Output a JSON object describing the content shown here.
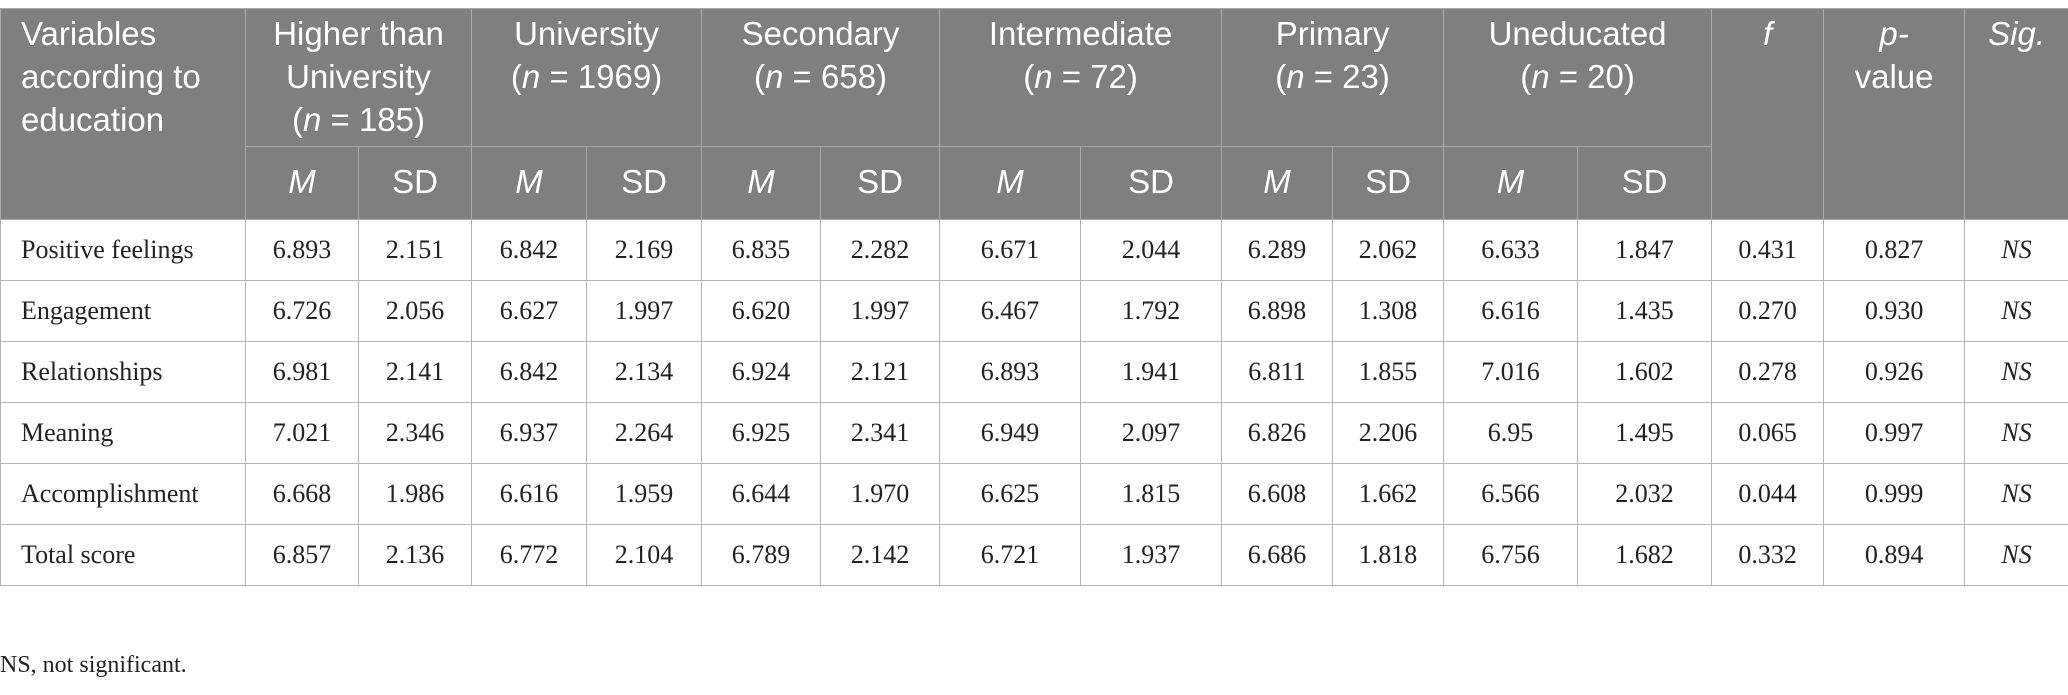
{
  "table": {
    "header": {
      "first_col": "Variables according to education",
      "groups": [
        {
          "name": "Higher than University",
          "n": "185"
        },
        {
          "name": "University",
          "n": "1969"
        },
        {
          "name": "Secondary",
          "n": "658"
        },
        {
          "name": "Intermediate",
          "n": "72"
        },
        {
          "name": "Primary",
          "n": "23"
        },
        {
          "name": "Uneducated",
          "n": "20"
        }
      ],
      "f": "f",
      "p_top": "p-",
      "p_bottom": "value",
      "sig": "Sig.",
      "n_label": "n",
      "eq": " = ",
      "m": "M",
      "sd": "SD"
    },
    "rows": [
      {
        "label": "Positive feelings",
        "cells": [
          "6.893",
          "2.151",
          "6.842",
          "2.169",
          "6.835",
          "2.282",
          "6.671",
          "2.044",
          "6.289",
          "2.062",
          "6.633",
          "1.847"
        ],
        "f": "0.431",
        "p": "0.827",
        "sig": "NS"
      },
      {
        "label": "Engagement",
        "cells": [
          "6.726",
          "2.056",
          "6.627",
          "1.997",
          "6.620",
          "1.997",
          "6.467",
          "1.792",
          "6.898",
          "1.308",
          "6.616",
          "1.435"
        ],
        "f": "0.270",
        "p": "0.930",
        "sig": "NS"
      },
      {
        "label": "Relationships",
        "cells": [
          "6.981",
          "2.141",
          "6.842",
          "2.134",
          "6.924",
          "2.121",
          "6.893",
          "1.941",
          "6.811",
          "1.855",
          "7.016",
          "1.602"
        ],
        "f": "0.278",
        "p": "0.926",
        "sig": "NS"
      },
      {
        "label": "Meaning",
        "cells": [
          "7.021",
          "2.346",
          "6.937",
          "2.264",
          "6.925",
          "2.341",
          "6.949",
          "2.097",
          "6.826",
          "2.206",
          "6.95",
          "1.495"
        ],
        "f": "0.065",
        "p": "0.997",
        "sig": "NS"
      },
      {
        "label": "Accomplishment",
        "cells": [
          "6.668",
          "1.986",
          "6.616",
          "1.959",
          "6.644",
          "1.970",
          "6.625",
          "1.815",
          "6.608",
          "1.662",
          "6.566",
          "2.032"
        ],
        "f": "0.044",
        "p": "0.999",
        "sig": "NS"
      },
      {
        "label": "Total score",
        "cells": [
          "6.857",
          "2.136",
          "6.772",
          "2.104",
          "6.789",
          "2.142",
          "6.721",
          "1.937",
          "6.686",
          "1.818",
          "6.756",
          "1.682"
        ],
        "f": "0.332",
        "p": "0.894",
        "sig": "NS"
      }
    ]
  },
  "footnote": "NS, not significant."
}
